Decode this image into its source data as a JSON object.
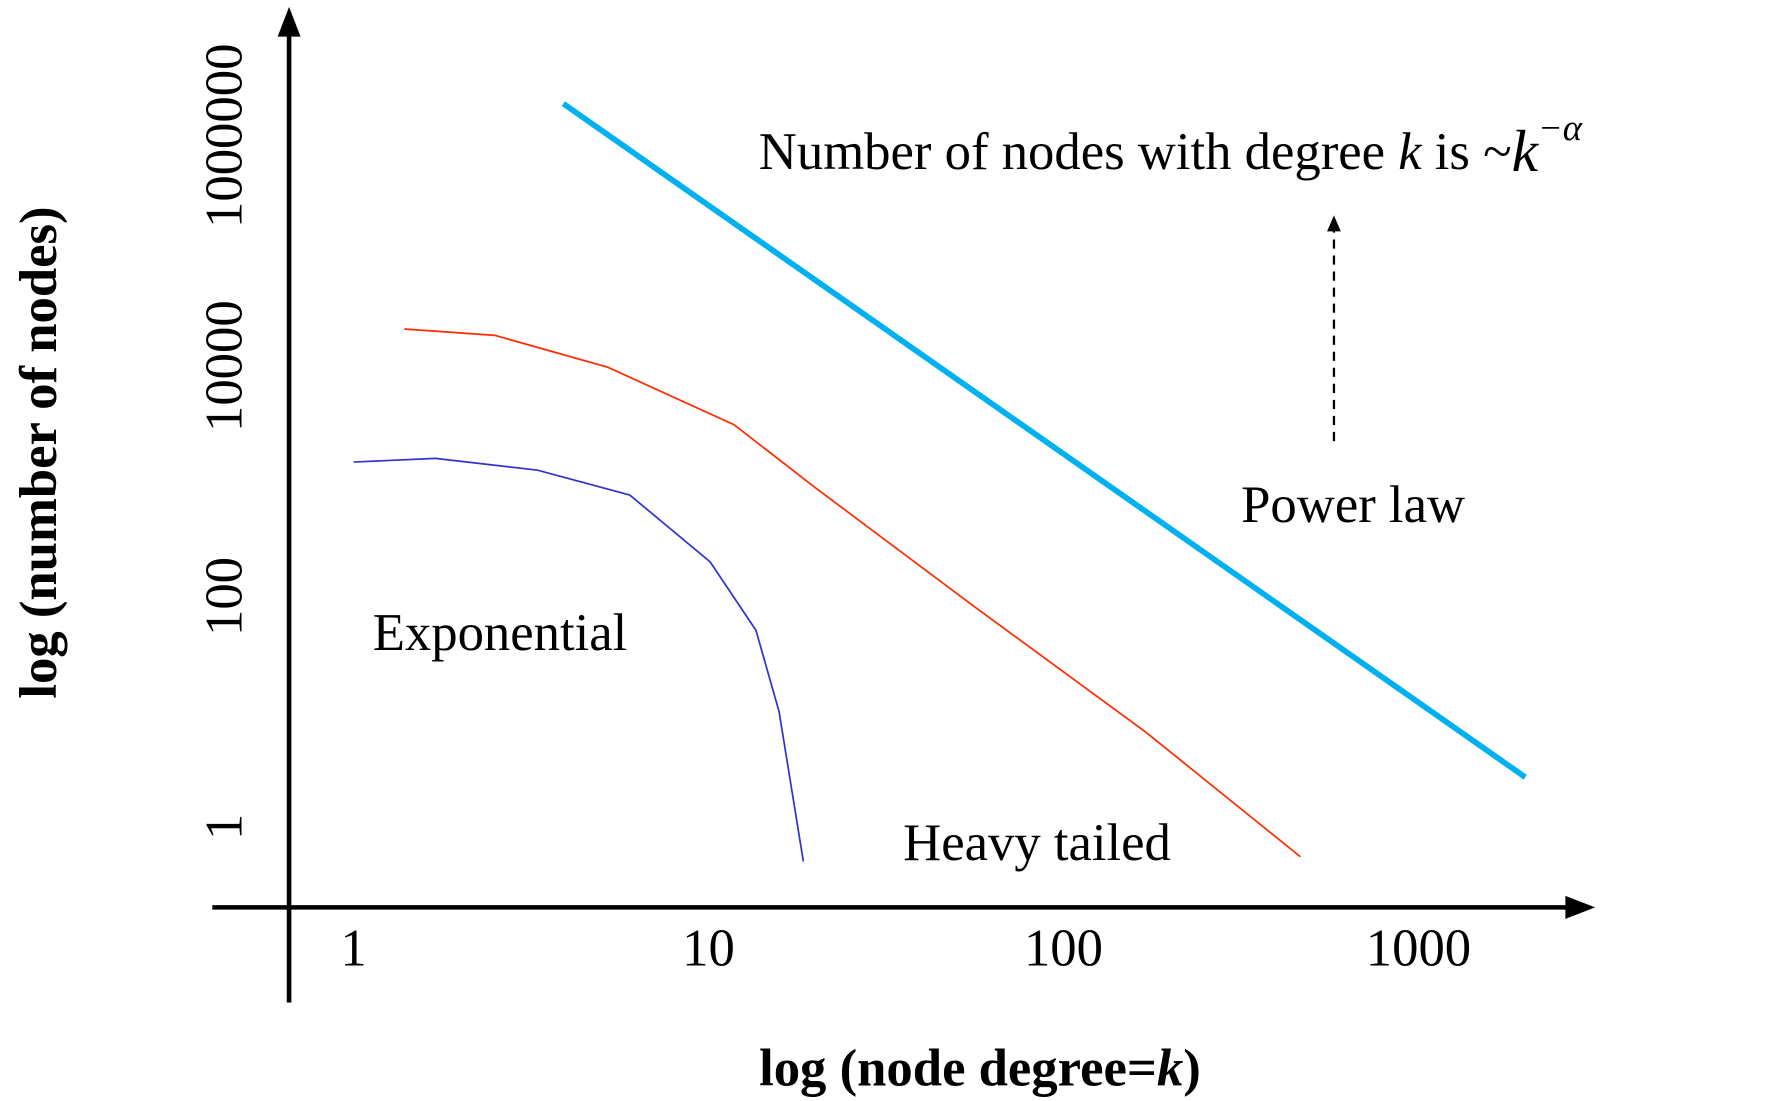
{
  "chart_data": {
    "type": "line",
    "x_label_parts": [
      "log (node degree=",
      "k",
      ")"
    ],
    "y_label": "log (number of nodes)",
    "annotation_parts": [
      "Number of nodes with degree ",
      "k",
      " is ~",
      "k",
      "−α"
    ],
    "log_x": true,
    "log_y": true,
    "xlim": [
      0.4,
      3100
    ],
    "ylim": [
      0.2,
      12000000
    ],
    "xticks": [
      1,
      10,
      100,
      1000
    ],
    "yticks": [
      1,
      100,
      10000,
      1000000
    ],
    "series": [
      {
        "name": "Power law",
        "color": "#00b0f0",
        "x": [
          3.9,
          2000
        ],
        "values": [
          1900000,
          2.7
        ]
      },
      {
        "name": "Heavy tailed",
        "color": "#ff2a00",
        "x": [
          1.39,
          2.5,
          5.2,
          11.8,
          19.8,
          56,
          171,
          465
        ],
        "values": [
          21000,
          18500,
          9800,
          3100,
          900,
          82,
          6.6,
          0.55
        ]
      },
      {
        "name": "Exponential",
        "color": "#3333cc",
        "x": [
          1.0,
          1.7,
          3.3,
          6.0,
          10.1,
          13.6,
          15.8,
          18.5
        ],
        "values": [
          1470,
          1580,
          1250,
          760,
          200,
          51,
          10,
          0.5
        ]
      }
    ]
  }
}
